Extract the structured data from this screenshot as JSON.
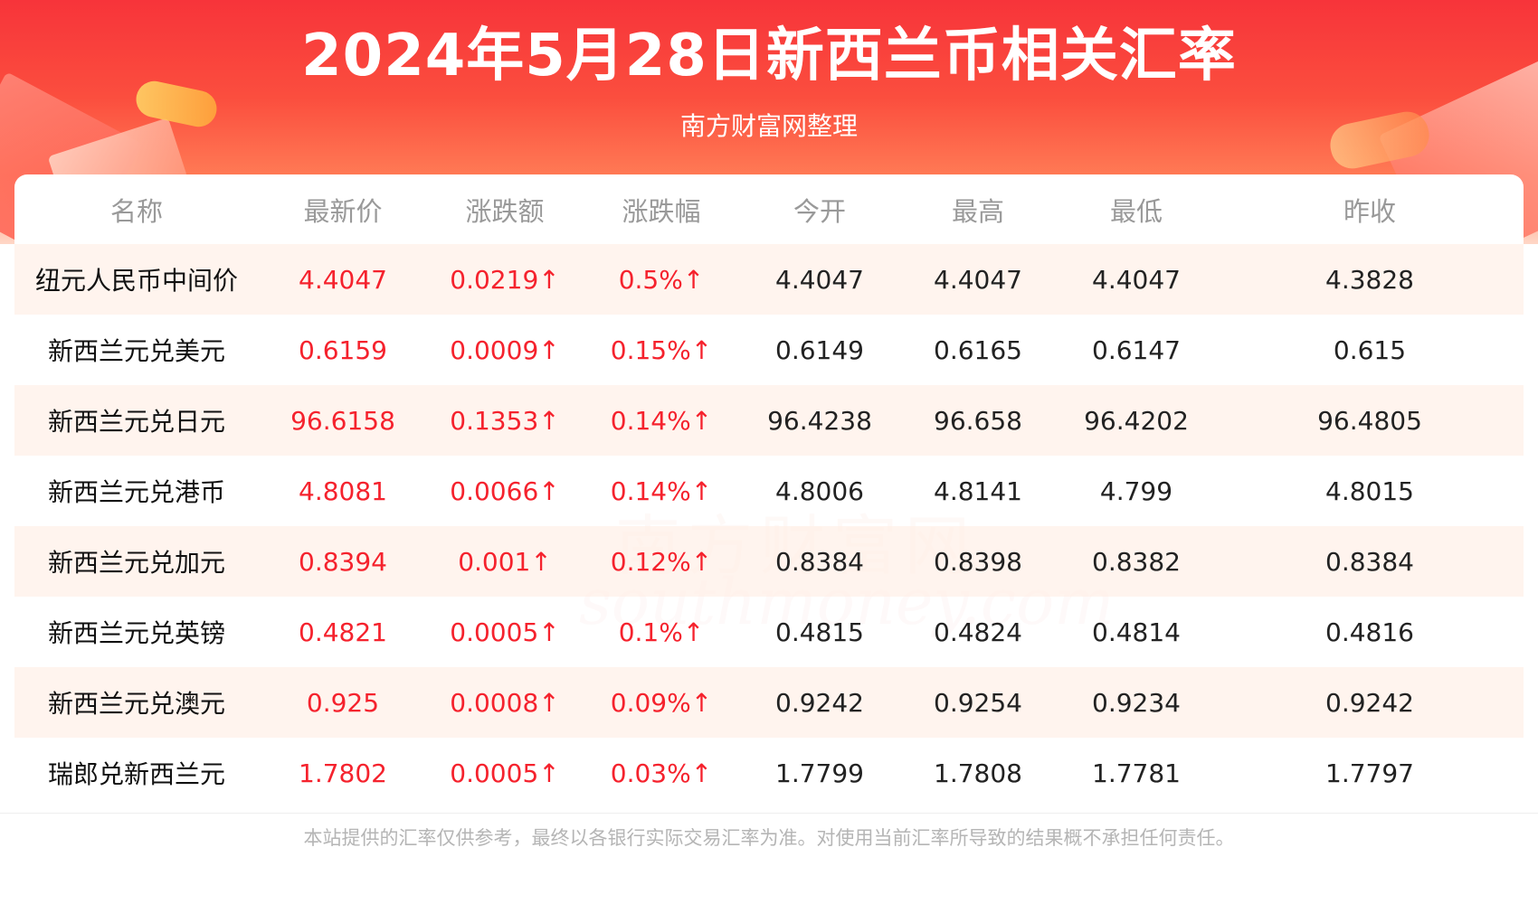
{
  "header": {
    "title": "2024年5月28日新西兰币相关汇率",
    "subtitle": "南方财富网整理"
  },
  "table": {
    "columns": [
      "名称",
      "最新价",
      "涨跌额",
      "涨跌幅",
      "今开",
      "最高",
      "最低",
      "昨收"
    ],
    "rows": [
      [
        "纽元人民币中间价",
        "4.4047",
        "0.0219↑",
        "0.5%↑",
        "4.4047",
        "4.4047",
        "4.4047",
        "4.3828"
      ],
      [
        "新西兰元兑美元",
        "0.6159",
        "0.0009↑",
        "0.15%↑",
        "0.6149",
        "0.6165",
        "0.6147",
        "0.615"
      ],
      [
        "新西兰元兑日元",
        "96.6158",
        "0.1353↑",
        "0.14%↑",
        "96.4238",
        "96.658",
        "96.4202",
        "96.4805"
      ],
      [
        "新西兰元兑港币",
        "4.8081",
        "0.0066↑",
        "0.14%↑",
        "4.8006",
        "4.8141",
        "4.799",
        "4.8015"
      ],
      [
        "新西兰元兑加元",
        "0.8394",
        "0.001↑",
        "0.12%↑",
        "0.8384",
        "0.8398",
        "0.8382",
        "0.8384"
      ],
      [
        "新西兰元兑英镑",
        "0.4821",
        "0.0005↑",
        "0.1%↑",
        "0.4815",
        "0.4824",
        "0.4814",
        "0.4816"
      ],
      [
        "新西兰元兑澳元",
        "0.925",
        "0.0008↑",
        "0.09%↑",
        "0.9242",
        "0.9254",
        "0.9234",
        "0.9242"
      ],
      [
        "瑞郎兑新西兰元",
        "1.7802",
        "0.0005↑",
        "0.03%↑",
        "1.7799",
        "1.7808",
        "1.7781",
        "1.7797"
      ]
    ]
  },
  "watermark": {
    "cn": "南方财富网",
    "en": "southmoney.com"
  },
  "footer": {
    "disclaimer": "本站提供的汇率仅供参考，最终以各银行实际交易汇率为准。对使用当前汇率所导致的结果概不承担任何责任。"
  },
  "colors": {
    "banner_red": "#f7343a",
    "up_red": "#f5222d",
    "header_gray": "#999999",
    "stripe": "#fff2eb"
  }
}
